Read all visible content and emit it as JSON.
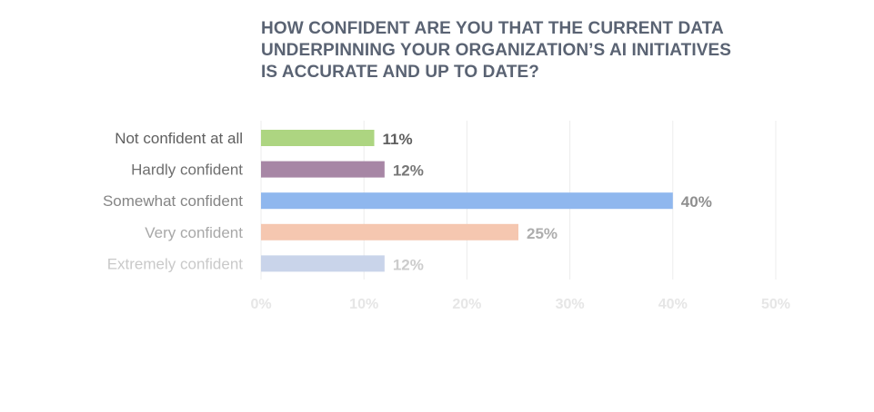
{
  "title_lines": [
    "HOW CONFIDENT ARE YOU THAT THE CURRENT DATA",
    "UNDERPINNING YOUR ORGANIZATION’S AI INITIATIVES",
    "IS ACCURATE AND UP TO DATE?"
  ],
  "chart_data": {
    "type": "bar",
    "orientation": "horizontal",
    "title": "HOW CONFIDENT ARE YOU THAT THE CURRENT DATA UNDERPINNING YOUR ORGANIZATION’S AI INITIATIVES IS ACCURATE AND UP TO DATE?",
    "categories": [
      "Not confident at all",
      "Hardly confident",
      "Somewhat confident",
      "Very confident",
      "Extremely confident"
    ],
    "values": [
      11,
      12,
      40,
      25,
      12
    ],
    "value_labels": [
      "11%",
      "12%",
      "40%",
      "25%",
      "12%"
    ],
    "category_label_colors": [
      "#5f5f5f",
      "#6f6f6f",
      "#858585",
      "#a8a8a8",
      "#c9c9c9"
    ],
    "value_label_colors": [
      "#5f5f5f",
      "#777777",
      "#8f8f8f",
      "#adadad",
      "#cccccc"
    ],
    "bar_colors": [
      "#add581",
      "#a786a5",
      "#8fb7ee",
      "#f5c7b0",
      "#c9d4ea"
    ],
    "xlim": [
      0,
      50
    ],
    "x_ticks": [
      0,
      10,
      20,
      30,
      40,
      50
    ],
    "x_tick_labels": [
      "0%",
      "10%",
      "20%",
      "30%",
      "40%",
      "50%"
    ],
    "grid": true,
    "xlabel": "",
    "ylabel": ""
  }
}
